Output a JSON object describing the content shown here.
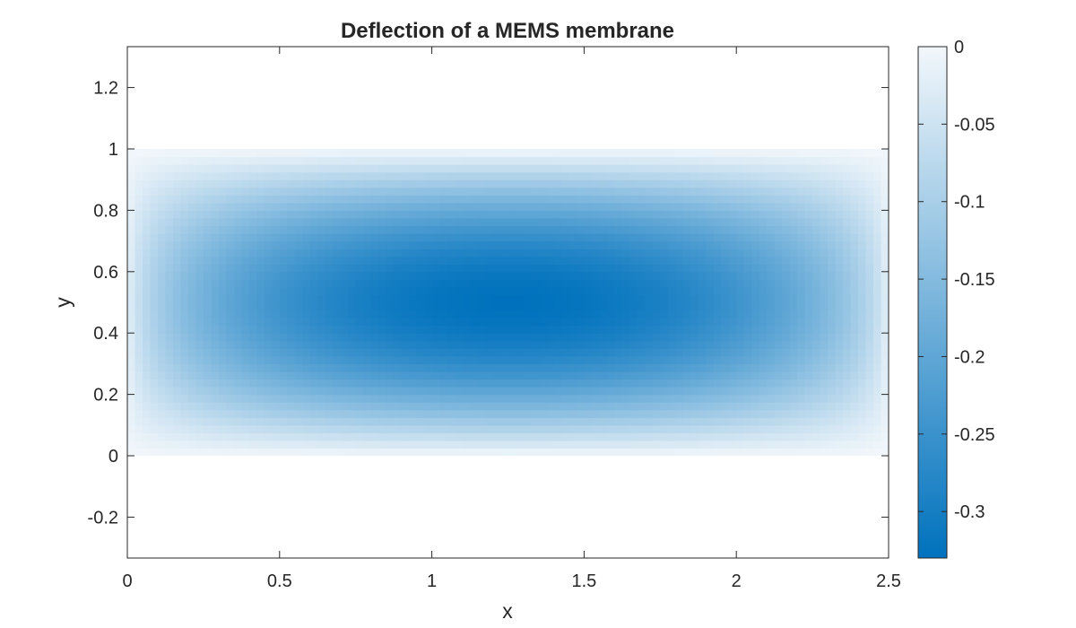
{
  "chart_data": {
    "type": "heatmap",
    "title": "Deflection of a MEMS membrane",
    "xlabel": "x",
    "ylabel": "y",
    "xlim": [
      0,
      2.5
    ],
    "ylim": [
      -0.3333,
      1.3333
    ],
    "xticks": [
      0,
      0.5,
      1,
      1.5,
      2,
      2.5
    ],
    "xtick_labels": [
      "0",
      "0.5",
      "1",
      "1.5",
      "2",
      "2.5"
    ],
    "yticks": [
      -0.2,
      0,
      0.2,
      0.4,
      0.6,
      0.8,
      1,
      1.2
    ],
    "ytick_labels": [
      "-0.2",
      "0",
      "0.2",
      "0.4",
      "0.6",
      "0.8",
      "1",
      "1.2"
    ],
    "domain": {
      "x": [
        0,
        2.5
      ],
      "y": [
        0,
        1
      ]
    },
    "field": {
      "max_deflection": -0.33,
      "max_location": [
        1.3,
        0.5
      ],
      "boundary_value": 0
    },
    "colorbar": {
      "range": [
        -0.33,
        0
      ],
      "ticks": [
        0,
        -0.05,
        -0.1,
        -0.15,
        -0.2,
        -0.25,
        -0.3
      ],
      "tick_labels": [
        "0",
        "-0.05",
        "-0.1",
        "-0.15",
        "-0.2",
        "-0.25",
        "-0.3"
      ],
      "color_low": "#0072BD",
      "color_high": "#F2F7FB"
    },
    "grid": false,
    "legend": "none"
  }
}
